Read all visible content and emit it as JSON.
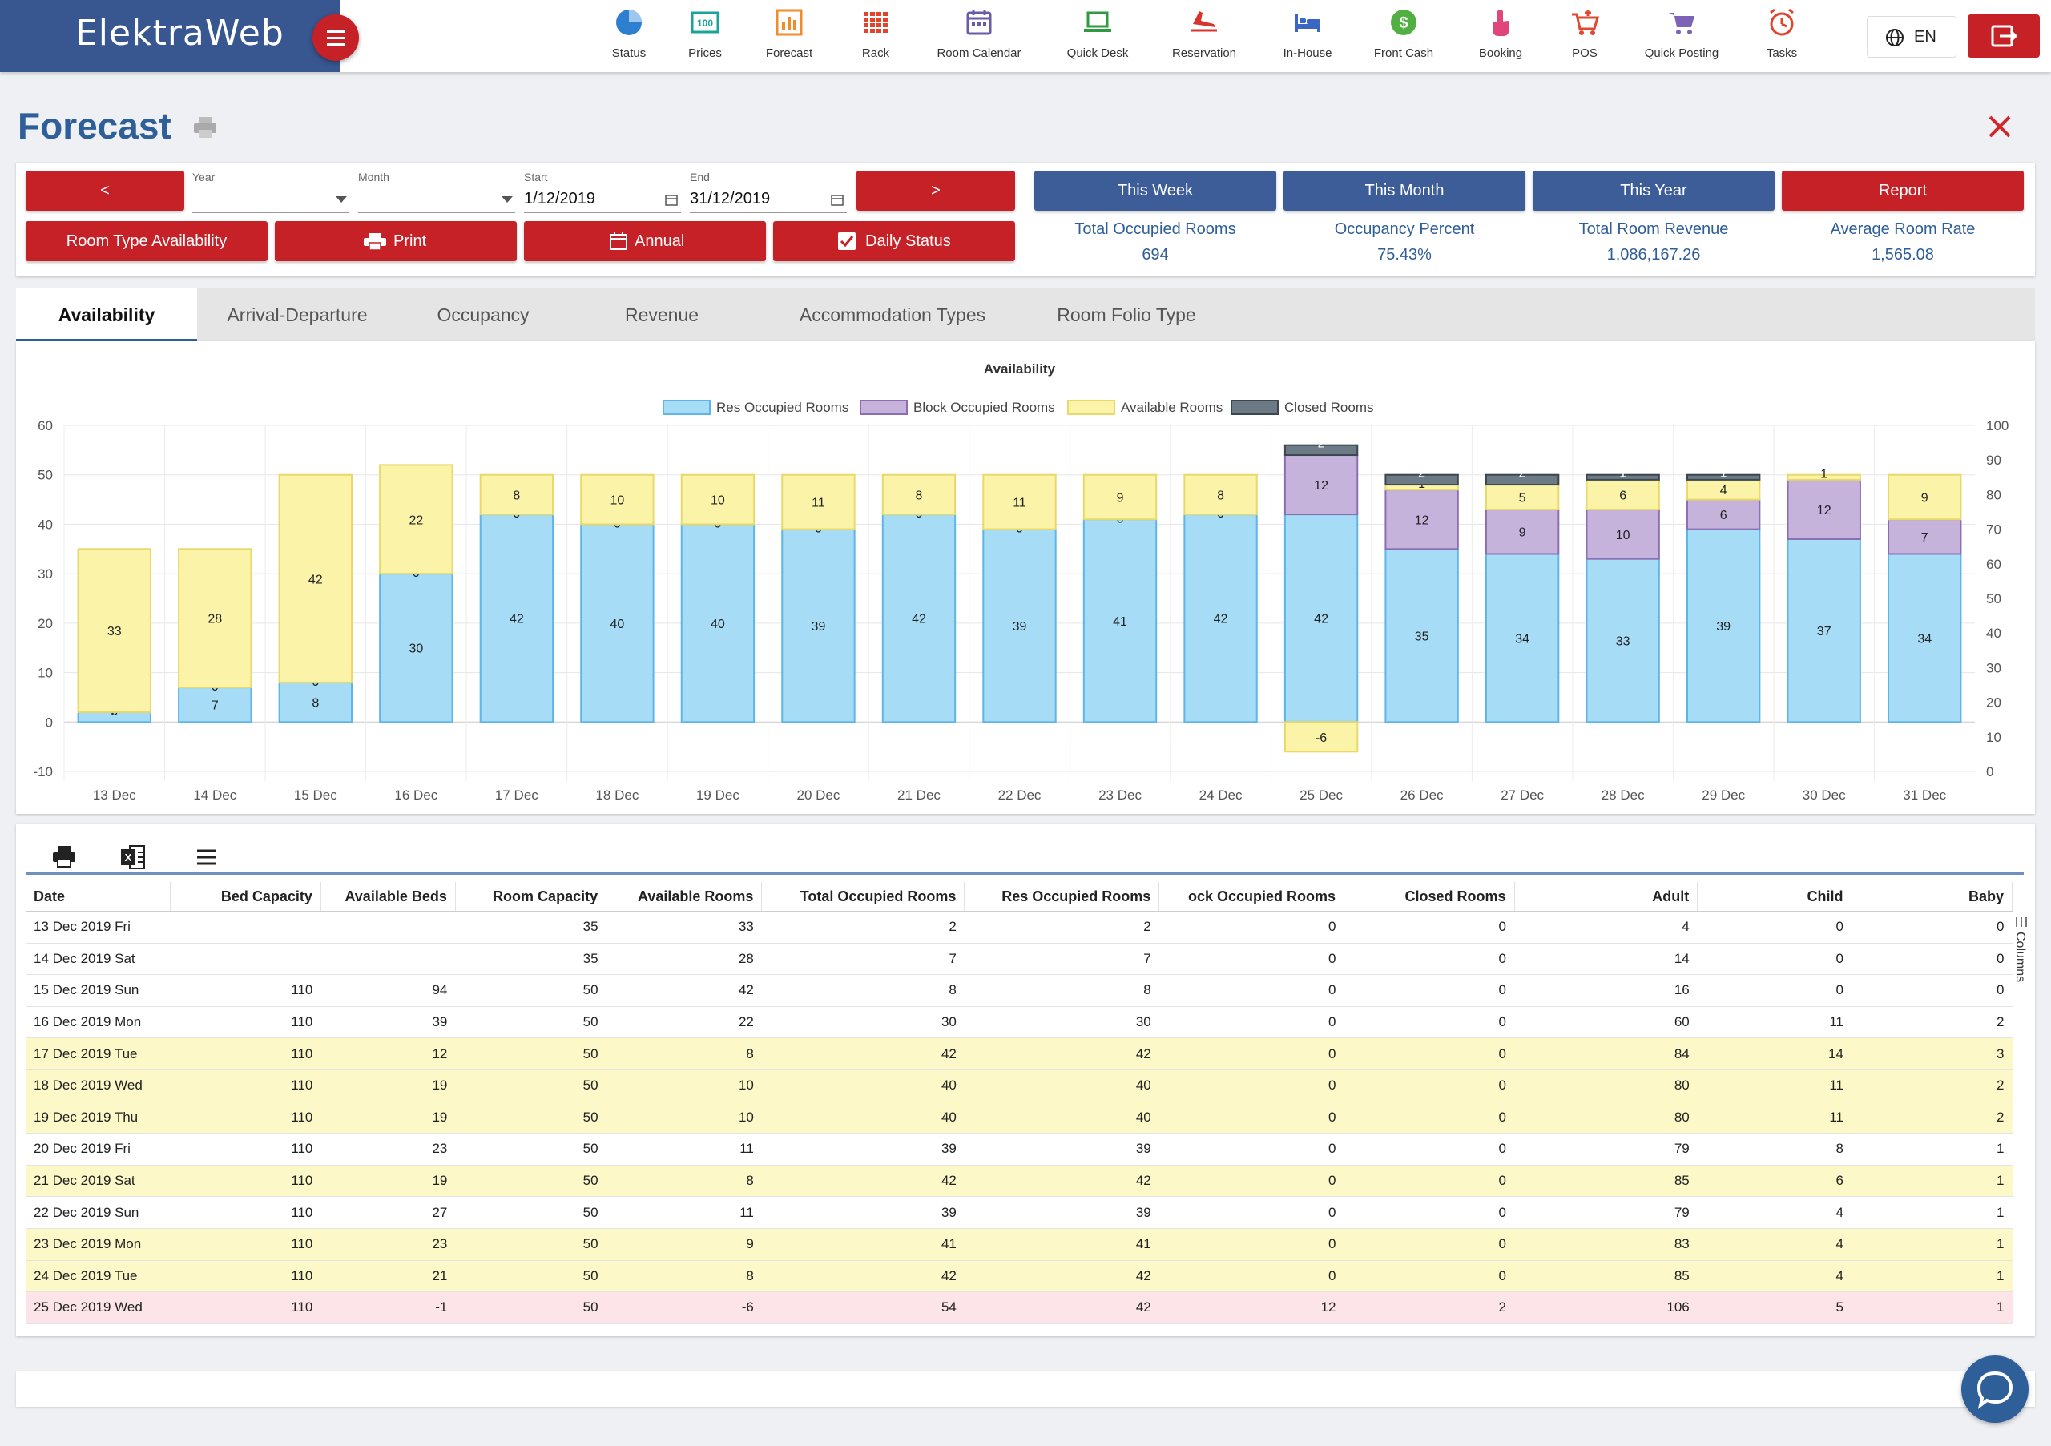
{
  "app": {
    "brand": "ElektraWeb",
    "language": "EN"
  },
  "nav": [
    {
      "label": "Status",
      "icon": "status-pie-icon",
      "color": "#2f7fd1"
    },
    {
      "label": "Prices",
      "icon": "prices-icon",
      "color": "#1aa39a"
    },
    {
      "label": "Forecast",
      "icon": "forecast-chart-icon",
      "color": "#f08c2a"
    },
    {
      "label": "Rack",
      "icon": "rack-grid-icon",
      "color": "#e2432a"
    },
    {
      "label": "Room Calendar",
      "icon": "calendar-icon",
      "color": "#6b5aa8"
    },
    {
      "label": "Quick Desk",
      "icon": "laptop-icon",
      "color": "#2f9a3f"
    },
    {
      "label": "Reservation",
      "icon": "plane-icon",
      "color": "#d9342b"
    },
    {
      "label": "In-House",
      "icon": "bed-icon",
      "color": "#3a66c4"
    },
    {
      "label": "Front Cash",
      "icon": "dollar-coin-icon",
      "color": "#52b043"
    },
    {
      "label": "Booking",
      "icon": "hand-pointer-icon",
      "color": "#e0457b"
    },
    {
      "label": "POS",
      "icon": "pos-cart-icon",
      "color": "#e0482f"
    },
    {
      "label": "Quick Posting",
      "icon": "cart-icon",
      "color": "#7c63b8"
    },
    {
      "label": "Tasks",
      "icon": "alarm-clock-icon",
      "color": "#e2432a"
    }
  ],
  "page": {
    "title": "Forecast"
  },
  "controls": {
    "prev_label": "<",
    "next_label": ">",
    "year_label": "Year",
    "year_value": "",
    "month_label": "Month",
    "month_value": "",
    "start_label": "Start",
    "start_value": "1/12/2019",
    "end_label": "End",
    "end_value": "31/12/2019",
    "room_type_label": "Room Type Availability",
    "print_label": "Print",
    "annual_label": "Annual",
    "daily_status_label": "Daily Status",
    "this_week": "This Week",
    "this_month": "This Month",
    "this_year": "This Year",
    "report": "Report"
  },
  "stats": [
    {
      "label": "Total Occupied Rooms",
      "value": "694"
    },
    {
      "label": "Occupancy Percent",
      "value": "75.43%"
    },
    {
      "label": "Total Room Revenue",
      "value": "1,086,167.26"
    },
    {
      "label": "Average Room Rate",
      "value": "1,565.08"
    }
  ],
  "tabs": [
    "Availability",
    "Arrival-Departure",
    "Occupancy",
    "Revenue",
    "Accommodation Types",
    "Room Folio Type"
  ],
  "chart_data": {
    "type": "bar",
    "stacked": true,
    "title": "Availability",
    "categories": [
      "13 Dec",
      "14 Dec",
      "15 Dec",
      "16 Dec",
      "17 Dec",
      "18 Dec",
      "19 Dec",
      "20 Dec",
      "21 Dec",
      "22 Dec",
      "23 Dec",
      "24 Dec",
      "25 Dec",
      "26 Dec",
      "27 Dec",
      "28 Dec",
      "29 Dec",
      "30 Dec",
      "31 Dec"
    ],
    "series": [
      {
        "name": "Res Occupied Rooms",
        "color": "#a6dcf5",
        "border": "#5fb6e6",
        "values": [
          2,
          7,
          8,
          30,
          42,
          40,
          40,
          39,
          42,
          39,
          41,
          42,
          42,
          35,
          34,
          33,
          39,
          37,
          34
        ]
      },
      {
        "name": "Block Occupied Rooms",
        "color": "#c6b3dc",
        "border": "#8b6fb3",
        "values": [
          0,
          0,
          0,
          0,
          0,
          0,
          0,
          0,
          0,
          0,
          0,
          0,
          12,
          12,
          9,
          10,
          6,
          12,
          7
        ]
      },
      {
        "name": "Available Rooms",
        "color": "#faf3a8",
        "border": "#e8d96a",
        "values": [
          33,
          28,
          42,
          22,
          8,
          10,
          10,
          11,
          8,
          11,
          9,
          8,
          -6,
          1,
          5,
          6,
          4,
          1,
          9
        ]
      },
      {
        "name": "Closed Rooms",
        "color": "#6c7a86",
        "border": "#3c4650",
        "values": [
          0,
          0,
          0,
          0,
          0,
          0,
          0,
          0,
          0,
          0,
          0,
          0,
          2,
          2,
          2,
          1,
          1,
          0,
          0
        ]
      }
    ],
    "y_left": {
      "min": -10,
      "max": 60,
      "ticks": [
        -10,
        0,
        10,
        20,
        30,
        40,
        50,
        60
      ]
    },
    "y_right": {
      "min": 0,
      "max": 100,
      "ticks": [
        0,
        10,
        20,
        30,
        40,
        50,
        60,
        70,
        80,
        90,
        100
      ]
    },
    "legend": "top-center",
    "grid": true
  },
  "grid": {
    "columns": [
      "Date",
      "Bed Capacity",
      "Available Beds",
      "Room Capacity",
      "Available Rooms",
      "Total Occupied Rooms",
      "Res Occupied Rooms",
      "ock Occupied Rooms",
      "Closed Rooms",
      "Adult",
      "Child",
      "Baby"
    ],
    "columns_side_label": "Columns",
    "rows": [
      {
        "cells": [
          "13 Dec 2019 Fri",
          "",
          "",
          "35",
          "33",
          "2",
          "2",
          "0",
          "0",
          "4",
          "0",
          "0"
        ],
        "hl": ""
      },
      {
        "cells": [
          "14 Dec 2019 Sat",
          "",
          "",
          "35",
          "28",
          "7",
          "7",
          "0",
          "0",
          "14",
          "0",
          "0"
        ],
        "hl": ""
      },
      {
        "cells": [
          "15 Dec 2019 Sun",
          "110",
          "94",
          "50",
          "42",
          "8",
          "8",
          "0",
          "0",
          "16",
          "0",
          "0"
        ],
        "hl": ""
      },
      {
        "cells": [
          "16 Dec 2019 Mon",
          "110",
          "39",
          "50",
          "22",
          "30",
          "30",
          "0",
          "0",
          "60",
          "11",
          "2"
        ],
        "hl": ""
      },
      {
        "cells": [
          "17 Dec 2019 Tue",
          "110",
          "12",
          "50",
          "8",
          "42",
          "42",
          "0",
          "0",
          "84",
          "14",
          "3"
        ],
        "hl": "yellow"
      },
      {
        "cells": [
          "18 Dec 2019 Wed",
          "110",
          "19",
          "50",
          "10",
          "40",
          "40",
          "0",
          "0",
          "80",
          "11",
          "2"
        ],
        "hl": "yellow"
      },
      {
        "cells": [
          "19 Dec 2019 Thu",
          "110",
          "19",
          "50",
          "10",
          "40",
          "40",
          "0",
          "0",
          "80",
          "11",
          "2"
        ],
        "hl": "yellow"
      },
      {
        "cells": [
          "20 Dec 2019 Fri",
          "110",
          "23",
          "50",
          "11",
          "39",
          "39",
          "0",
          "0",
          "79",
          "8",
          "1"
        ],
        "hl": ""
      },
      {
        "cells": [
          "21 Dec 2019 Sat",
          "110",
          "19",
          "50",
          "8",
          "42",
          "42",
          "0",
          "0",
          "85",
          "6",
          "1"
        ],
        "hl": "yellow"
      },
      {
        "cells": [
          "22 Dec 2019 Sun",
          "110",
          "27",
          "50",
          "11",
          "39",
          "39",
          "0",
          "0",
          "79",
          "4",
          "1"
        ],
        "hl": ""
      },
      {
        "cells": [
          "23 Dec 2019 Mon",
          "110",
          "23",
          "50",
          "9",
          "41",
          "41",
          "0",
          "0",
          "83",
          "4",
          "1"
        ],
        "hl": "yellow"
      },
      {
        "cells": [
          "24 Dec 2019 Tue",
          "110",
          "21",
          "50",
          "8",
          "42",
          "42",
          "0",
          "0",
          "85",
          "4",
          "1"
        ],
        "hl": "yellow"
      },
      {
        "cells": [
          "25 Dec 2019 Wed",
          "110",
          "-1",
          "50",
          "-6",
          "54",
          "42",
          "12",
          "2",
          "106",
          "5",
          "1"
        ],
        "hl": "pink"
      }
    ]
  },
  "colors": {
    "brand": "#38568f",
    "accent_red": "#c62127",
    "accent_blue": "#3d5d99",
    "title_blue": "#2f5f99"
  }
}
